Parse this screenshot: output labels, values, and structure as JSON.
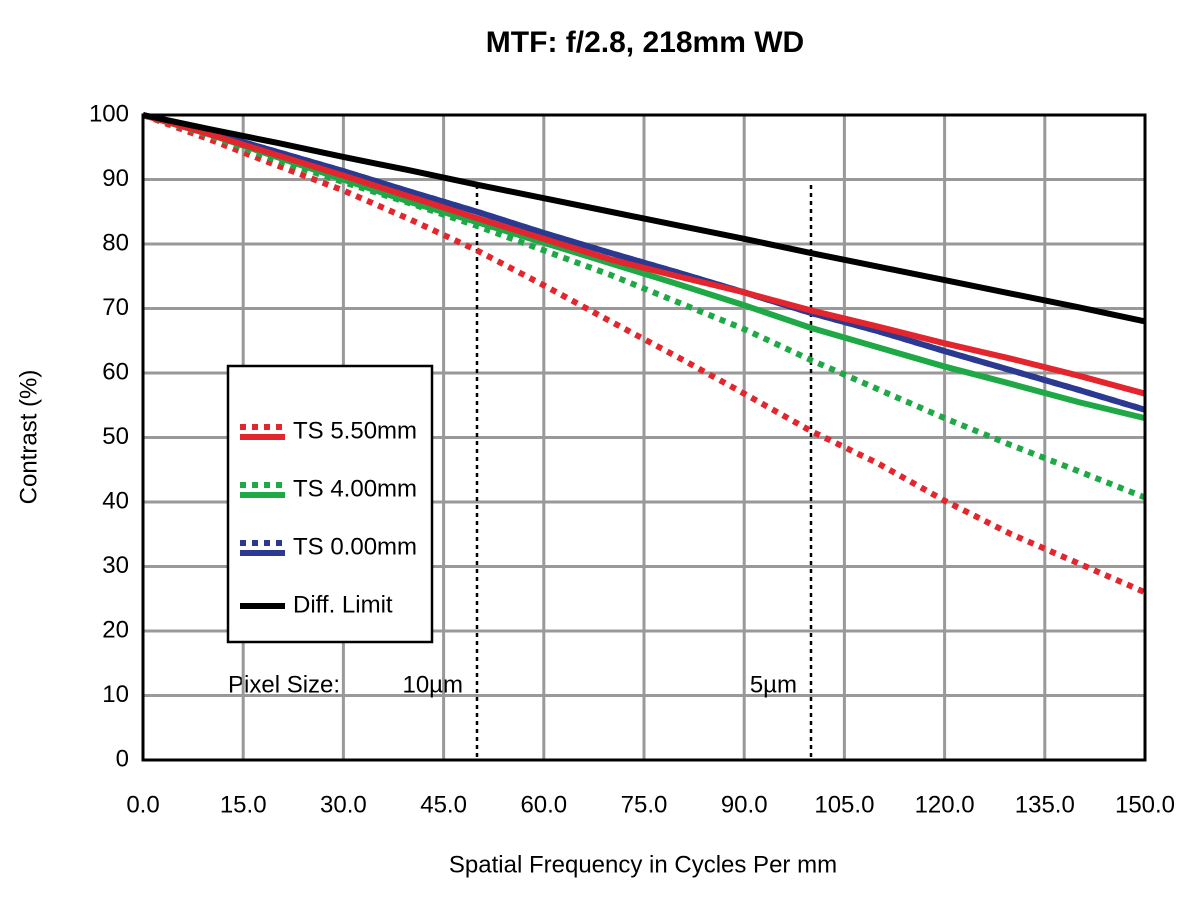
{
  "chart_data": {
    "type": "line",
    "title": "MTF: f/2.8, 218mm WD",
    "xlabel": "Spatial Frequency in Cycles Per mm",
    "ylabel": "Contrast (%)",
    "x": [
      0,
      10,
      20,
      30,
      40,
      50,
      60,
      70,
      80,
      90,
      100,
      110,
      120,
      130,
      140,
      150
    ],
    "series": [
      {
        "name": "TS 5.50mm",
        "color": "#e3262d",
        "style": "dotted",
        "values": [
          100,
          96.2,
          92.2,
          88.3,
          83.8,
          79,
          73.6,
          68,
          62.5,
          56.8,
          51,
          46,
          40.2,
          35,
          30.5,
          26
        ]
      },
      {
        "name": "TS 4.00mm",
        "color": "#1fa846",
        "style": "dotted",
        "values": [
          100,
          96.8,
          93,
          89.6,
          86.3,
          82.8,
          79,
          75.2,
          71,
          66.8,
          62,
          57.5,
          53,
          48.8,
          44.8,
          40.7
        ]
      },
      {
        "name": "TS 0.00mm",
        "color": "#2b3990",
        "style": "dotted",
        "values": [
          100,
          97.3,
          94.3,
          91.3,
          88.1,
          85,
          81.7,
          78.6,
          75.6,
          72.5,
          69.3,
          66.5,
          63.4,
          60.4,
          57.4,
          54.3
        ]
      },
      {
        "name": "TS 4.00mm",
        "color": "#1fa846",
        "style": "solid",
        "values": [
          100,
          97,
          93.5,
          90,
          86.5,
          83.4,
          80.2,
          77,
          73.8,
          70.5,
          67,
          64,
          61,
          58.3,
          55.5,
          53
        ]
      },
      {
        "name": "TS 0.00mm",
        "color": "#2b3990",
        "style": "solid",
        "values": [
          100,
          97.3,
          94.3,
          91.3,
          88.1,
          85,
          81.7,
          78.6,
          75.6,
          72.5,
          69.3,
          66.5,
          63.4,
          60.4,
          57.4,
          54.3
        ]
      },
      {
        "name": "TS 5.50mm",
        "color": "#e3262d",
        "style": "solid",
        "values": [
          100,
          97,
          93.8,
          90.6,
          87.3,
          84,
          80.8,
          77.6,
          75,
          72.5,
          69.7,
          67.2,
          64.6,
          62.2,
          59.6,
          56.8
        ]
      },
      {
        "name": "Diff. Limit",
        "color": "#000000",
        "style": "solid",
        "values": [
          100,
          97.8,
          95.7,
          93.5,
          91.4,
          89.2,
          87.1,
          85,
          82.9,
          80.8,
          78.6,
          76.5,
          74.4,
          72.3,
          70.2,
          68
        ]
      }
    ],
    "xlim": [
      0,
      150
    ],
    "xticks": [
      {
        "value": 0,
        "label": "0.0"
      },
      {
        "value": 15,
        "label": "15.0"
      },
      {
        "value": 30,
        "label": "30.0"
      },
      {
        "value": 45,
        "label": "45.0"
      },
      {
        "value": 60,
        "label": "60.0"
      },
      {
        "value": 75,
        "label": "75.0"
      },
      {
        "value": 90,
        "label": "90.0"
      },
      {
        "value": 105,
        "label": "105.0"
      },
      {
        "value": 120,
        "label": "120.0"
      },
      {
        "value": 135,
        "label": "135.0"
      },
      {
        "value": 150,
        "label": "150.0"
      }
    ],
    "ylim": [
      0,
      100
    ],
    "yticks": [
      0,
      10,
      20,
      30,
      40,
      50,
      60,
      70,
      80,
      90,
      100
    ],
    "grid": true,
    "pixel_size_label": "Pixel Size:",
    "markers": [
      {
        "value": 50,
        "label": "10µm"
      },
      {
        "value": 100,
        "label": "5µm"
      }
    ]
  }
}
